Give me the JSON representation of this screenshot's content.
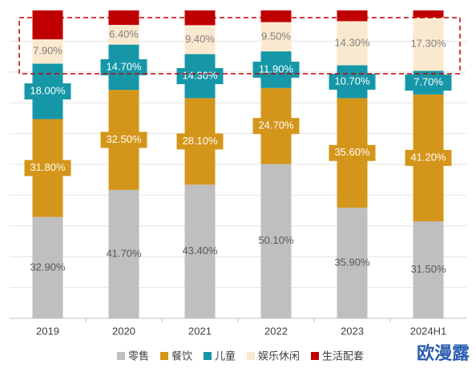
{
  "chart_data": {
    "type": "stacked-bar",
    "categories": [
      "2019",
      "2020",
      "2021",
      "2022",
      "2023",
      "2024H1"
    ],
    "series": [
      {
        "name": "零售",
        "color": "#bfbfbf",
        "values": [
          32.9,
          41.7,
          43.4,
          50.1,
          35.9,
          31.5
        ],
        "value_labels": [
          "32.90%",
          "41.70%",
          "43.40%",
          "50.10%",
          "35.90%",
          "31.50%"
        ]
      },
      {
        "name": "餐饮",
        "color": "#d4961a",
        "values": [
          31.8,
          32.5,
          28.1,
          24.7,
          35.6,
          41.2
        ],
        "value_labels": [
          "31.80%",
          "32.50%",
          "28.10%",
          "24.70%",
          "35.60%",
          "41.20%"
        ]
      },
      {
        "name": "儿童",
        "color": "#1597a8",
        "values": [
          18.0,
          14.7,
          14.3,
          11.9,
          10.7,
          7.7
        ],
        "value_labels": [
          "18.00%",
          "14.70%",
          "14.30%",
          "11.90%",
          "10.70%",
          "7.70%"
        ]
      },
      {
        "name": "娱乐休闲",
        "color": "#fbe9cf",
        "values": [
          7.9,
          6.4,
          9.4,
          9.5,
          14.3,
          17.3
        ],
        "value_labels": [
          "7.90%",
          "6.40%",
          "9.40%",
          "9.50%",
          "14.30%",
          "17.30%"
        ]
      },
      {
        "name": "生活配套",
        "color": "#c00000",
        "values": [
          9.4,
          4.7,
          4.8,
          3.8,
          3.5,
          2.3
        ]
      }
    ],
    "ylim": [
      0,
      100
    ],
    "yticks": [
      10,
      20,
      30,
      40,
      50,
      60,
      70,
      80,
      90
    ],
    "grid": true
  },
  "watermark": "欧漫露"
}
